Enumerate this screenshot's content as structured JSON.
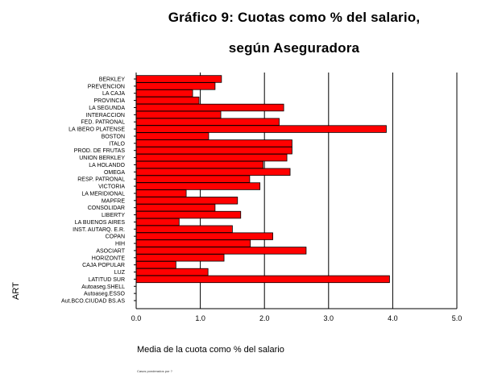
{
  "chart_data": {
    "type": "bar",
    "orientation": "horizontal",
    "title_line1": "Gráfico 9: Cuotas como % del salario,",
    "title_line2": "según Aseguradora",
    "xlabel": "Media de la cuota como % del salario",
    "ylabel": "ART",
    "footnote": "Casos ponderados por ?",
    "xlim": [
      0.0,
      5.0
    ],
    "xticks": [
      "0.0",
      "1.0",
      "2.0",
      "3.0",
      "4.0",
      "5.0"
    ],
    "grid": "vertical",
    "color": "#ff0000",
    "categories": [
      "BERKLEY",
      "PREVENCION",
      "LA CAJA",
      "PROVINCIA",
      "LA SEGUNDA",
      "INTERACCION",
      "FED. PATRONAL",
      "LA IBERO PLATENSE",
      "BOSTON",
      "ITALO",
      "PROD. DE FRUTAS",
      "UNION BERKLEY",
      "LA HOLANDO",
      "OMEGA",
      "RESP. PATRONAL",
      "VICTORIA",
      "LA MERIDIONAL",
      "MAPFRE",
      "CONSOLIDAR",
      "LIBERTY",
      "LA BUENOS AIRES",
      "INST. AUTARQ. E.R.",
      "COPAN",
      "HIH",
      "ASOCIART",
      "HORIZONTE",
      "CAJA POPULAR",
      "LUZ",
      "LATITUD SUR",
      "Autoaseg.SHELL",
      "Autoaseg.ESSO",
      "Aut.BCO.CIUDAD BS.AS"
    ],
    "values": [
      1.33,
      1.23,
      0.88,
      0.98,
      2.3,
      1.32,
      2.23,
      3.9,
      1.13,
      2.43,
      2.43,
      2.35,
      1.98,
      2.4,
      1.77,
      1.93,
      0.78,
      1.58,
      1.23,
      1.63,
      0.67,
      1.5,
      2.13,
      1.78,
      2.65,
      1.37,
      0.62,
      1.12,
      3.95,
      0.0,
      0.0,
      0.0
    ]
  }
}
